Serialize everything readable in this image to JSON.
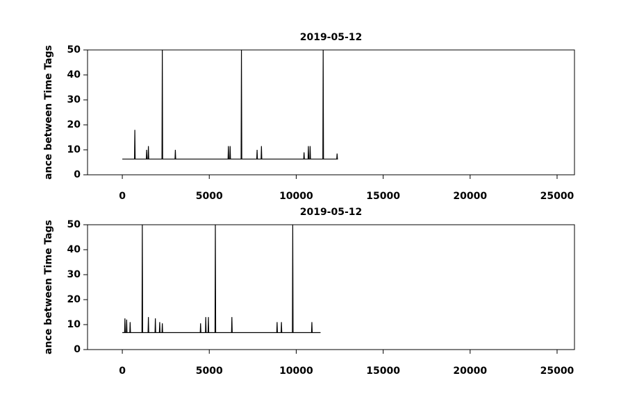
{
  "chart_data": [
    {
      "type": "line",
      "title": "2019-05-12",
      "y_label": "ance between Time Tags",
      "xlim": [
        -2000,
        26000
      ],
      "xticks": [
        0,
        5000,
        10000,
        15000,
        20000,
        25000
      ],
      "ylim": [
        0,
        50
      ],
      "yticks": [
        0,
        10,
        20,
        30,
        40,
        50
      ],
      "series": [
        {
          "color": "#000000",
          "x": [
            0,
            700,
            720,
            740,
            1380,
            1400,
            1420,
            1480,
            1500,
            1520,
            2280,
            2300,
            2320,
            3030,
            3050,
            3070,
            6080,
            6100,
            6120,
            6180,
            6200,
            6220,
            6830,
            6850,
            6870,
            7730,
            7750,
            7770,
            7980,
            8000,
            8020,
            10430,
            10450,
            10470,
            10680,
            10700,
            10720,
            10780,
            10800,
            10820,
            11530,
            11550,
            11570,
            12330,
            12350,
            12370,
            12400
          ],
          "values": [
            6.3,
            6.3,
            18,
            6.3,
            6.3,
            10,
            6.3,
            6.3,
            11.5,
            6.3,
            6.3,
            50,
            6.3,
            6.3,
            10,
            6.3,
            6.3,
            11.5,
            6.3,
            6.3,
            11.5,
            6.3,
            6.3,
            50,
            6.3,
            6.3,
            10,
            6.3,
            6.3,
            11.5,
            6.3,
            6.3,
            9,
            6.3,
            6.3,
            11.5,
            6.3,
            6.3,
            11.5,
            6.3,
            6.3,
            50,
            6.3,
            6.3,
            8.5,
            6.3,
            6.3
          ]
        }
      ]
    },
    {
      "type": "line",
      "title": "2019-05-12",
      "y_label": "ance between Time Tags",
      "xlim": [
        -2000,
        26000
      ],
      "xticks": [
        0,
        5000,
        10000,
        15000,
        20000,
        25000
      ],
      "ylim": [
        0,
        50
      ],
      "yticks": [
        0,
        10,
        20,
        30,
        40,
        50
      ],
      "series": [
        {
          "color": "#000000",
          "x": [
            0,
            130,
            150,
            170,
            230,
            250,
            270,
            430,
            450,
            470,
            1130,
            1150,
            1170,
            1480,
            1500,
            1520,
            1880,
            1900,
            1920,
            2130,
            2150,
            2170,
            2280,
            2300,
            2320,
            4480,
            4500,
            4520,
            4780,
            4800,
            4820,
            4930,
            4950,
            4970,
            5330,
            5350,
            5370,
            6280,
            6300,
            6320,
            8880,
            8900,
            8920,
            9130,
            9150,
            9170,
            9780,
            9800,
            9820,
            10880,
            10900,
            10920,
            11400
          ],
          "values": [
            6.8,
            6.8,
            12.5,
            6.8,
            6.8,
            12,
            6.8,
            6.8,
            11,
            6.8,
            6.8,
            50,
            6.8,
            6.8,
            13,
            6.8,
            6.8,
            12.5,
            6.8,
            6.8,
            11,
            6.8,
            6.8,
            10.5,
            6.8,
            6.8,
            10.5,
            6.8,
            6.8,
            13,
            6.8,
            6.8,
            13,
            6.8,
            6.8,
            50,
            6.8,
            6.8,
            13,
            6.8,
            6.8,
            11,
            6.8,
            6.8,
            11,
            6.8,
            6.8,
            50,
            6.8,
            6.8,
            11,
            6.8,
            6.8
          ]
        }
      ]
    }
  ]
}
